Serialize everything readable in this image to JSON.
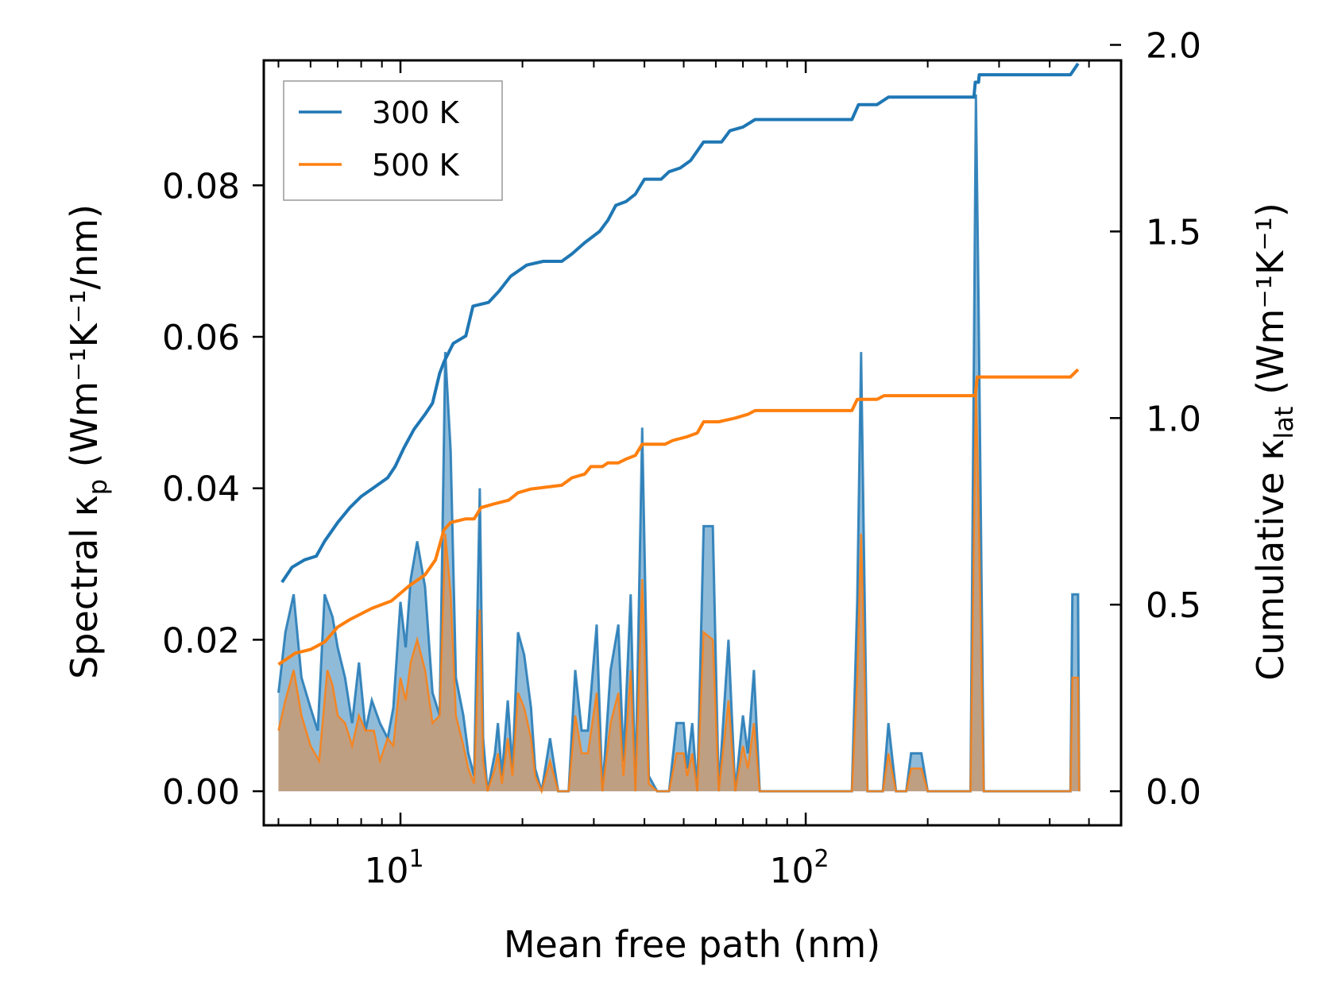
{
  "chart_data": {
    "type": "line",
    "xscale": "log",
    "xlabel": "Mean free path (nm)",
    "ylabel_left": {
      "main": "Spectral κ",
      "sub": "p",
      "units": " (Wm⁻¹K⁻¹/nm)"
    },
    "ylabel_right": {
      "main": "Cumulative κ",
      "sub": "lat",
      "units": " (Wm⁻¹K⁻¹)"
    },
    "xlim": [
      4.6,
      600
    ],
    "ylim_left": [
      -0.0045,
      0.0965
    ],
    "ylim_right": [
      -0.0913,
      1.9585
    ],
    "x_ticks": [
      {
        "value": 10,
        "base": "10",
        "exp": "1"
      },
      {
        "value": 100,
        "base": "10",
        "exp": "2"
      }
    ],
    "y_left_ticks": [
      {
        "value": 0.0,
        "label": "0.00"
      },
      {
        "value": 0.02,
        "label": "0.02"
      },
      {
        "value": 0.04,
        "label": "0.04"
      },
      {
        "value": 0.06,
        "label": "0.06"
      },
      {
        "value": 0.08,
        "label": "0.08"
      }
    ],
    "y_right_ticks": [
      {
        "value": 0.0,
        "label": "0.0"
      },
      {
        "value": 0.5,
        "label": "0.5"
      },
      {
        "value": 1.0,
        "label": "1.0"
      },
      {
        "value": 1.5,
        "label": "1.5"
      },
      {
        "value": 2.0,
        "label": "2.0"
      }
    ],
    "legend": {
      "location": "upper-left"
    },
    "colors": {
      "s300": "#1f77b4",
      "s500": "#ff7f0e"
    },
    "series": [
      {
        "name": "300 K",
        "cumulative": [
          [
            5.1,
            0.56
          ],
          [
            5.4,
            0.6
          ],
          [
            5.8,
            0.62
          ],
          [
            6.2,
            0.63
          ],
          [
            6.5,
            0.67
          ],
          [
            7.0,
            0.72
          ],
          [
            7.5,
            0.76
          ],
          [
            8.0,
            0.79
          ],
          [
            8.5,
            0.81
          ],
          [
            9.3,
            0.84
          ],
          [
            9.7,
            0.87
          ],
          [
            10.2,
            0.92
          ],
          [
            10.8,
            0.97
          ],
          [
            11.5,
            1.01
          ],
          [
            12.0,
            1.04
          ],
          [
            12.5,
            1.12
          ],
          [
            12.8,
            1.15
          ],
          [
            13.5,
            1.2
          ],
          [
            14.5,
            1.22
          ],
          [
            15.1,
            1.3
          ],
          [
            16.5,
            1.31
          ],
          [
            17.5,
            1.34
          ],
          [
            18.7,
            1.38
          ],
          [
            20.5,
            1.41
          ],
          [
            22.5,
            1.42
          ],
          [
            25.0,
            1.42
          ],
          [
            26.5,
            1.44
          ],
          [
            28.5,
            1.47
          ],
          [
            31.0,
            1.5
          ],
          [
            32.5,
            1.53
          ],
          [
            34.0,
            1.57
          ],
          [
            36.0,
            1.58
          ],
          [
            38.0,
            1.6
          ],
          [
            40.0,
            1.64
          ],
          [
            44.0,
            1.64
          ],
          [
            46.0,
            1.66
          ],
          [
            49.0,
            1.67
          ],
          [
            52.0,
            1.69
          ],
          [
            56.0,
            1.74
          ],
          [
            62.0,
            1.74
          ],
          [
            65.0,
            1.77
          ],
          [
            70.0,
            1.78
          ],
          [
            75.0,
            1.8
          ],
          [
            90.0,
            1.8
          ],
          [
            130.0,
            1.8
          ],
          [
            135.0,
            1.84
          ],
          [
            150.0,
            1.84
          ],
          [
            160.0,
            1.86
          ],
          [
            180.0,
            1.86
          ],
          [
            260.0,
            1.86
          ],
          [
            262.0,
            1.9
          ],
          [
            267.0,
            1.9
          ],
          [
            268.0,
            1.92
          ],
          [
            420.0,
            1.92
          ],
          [
            450.0,
            1.92
          ],
          [
            470.0,
            1.95
          ]
        ],
        "spectral": [
          [
            5.0,
            0.013
          ],
          [
            5.2,
            0.021
          ],
          [
            5.45,
            0.026
          ],
          [
            5.7,
            0.015
          ],
          [
            6.0,
            0.011
          ],
          [
            6.25,
            0.008
          ],
          [
            6.5,
            0.026
          ],
          [
            6.8,
            0.023
          ],
          [
            7.0,
            0.019
          ],
          [
            7.3,
            0.015
          ],
          [
            7.6,
            0.009
          ],
          [
            7.9,
            0.017
          ],
          [
            8.2,
            0.008
          ],
          [
            8.5,
            0.012
          ],
          [
            8.9,
            0.009
          ],
          [
            9.3,
            0.007
          ],
          [
            9.6,
            0.011
          ],
          [
            10.0,
            0.025
          ],
          [
            10.3,
            0.019
          ],
          [
            10.6,
            0.028
          ],
          [
            11.0,
            0.033
          ],
          [
            11.5,
            0.027
          ],
          [
            12.0,
            0.013
          ],
          [
            12.5,
            0.01
          ],
          [
            12.9,
            0.058
          ],
          [
            13.3,
            0.045
          ],
          [
            13.7,
            0.015
          ],
          [
            14.3,
            0.01
          ],
          [
            14.7,
            0.005
          ],
          [
            15.2,
            0.002
          ],
          [
            15.7,
            0.04
          ],
          [
            16.0,
            0.007
          ],
          [
            16.4,
            0.0
          ],
          [
            17.1,
            0.005
          ],
          [
            17.4,
            0.009
          ],
          [
            17.8,
            0.002
          ],
          [
            18.4,
            0.012
          ],
          [
            18.9,
            0.003
          ],
          [
            19.5,
            0.021
          ],
          [
            20.2,
            0.018
          ],
          [
            21.0,
            0.011
          ],
          [
            21.5,
            0.003
          ],
          [
            22.3,
            0.0
          ],
          [
            23.4,
            0.007
          ],
          [
            24.5,
            0.0
          ],
          [
            26.0,
            0.0
          ],
          [
            27.0,
            0.016
          ],
          [
            28.0,
            0.008
          ],
          [
            29.0,
            0.008
          ],
          [
            30.5,
            0.022
          ],
          [
            31.5,
            0.0
          ],
          [
            33.0,
            0.016
          ],
          [
            34.5,
            0.022
          ],
          [
            35.5,
            0.004
          ],
          [
            37.0,
            0.026
          ],
          [
            38.0,
            0.0
          ],
          [
            39.5,
            0.048
          ],
          [
            41.0,
            0.002
          ],
          [
            43.0,
            0.0
          ],
          [
            46.0,
            0.0
          ],
          [
            48.0,
            0.009
          ],
          [
            50.0,
            0.009
          ],
          [
            51.0,
            0.003
          ],
          [
            52.5,
            0.009
          ],
          [
            54.0,
            0.0
          ],
          [
            56.0,
            0.035
          ],
          [
            59.0,
            0.035
          ],
          [
            61.0,
            0.0
          ],
          [
            64.5,
            0.02
          ],
          [
            67.0,
            0.0
          ],
          [
            70.0,
            0.01
          ],
          [
            72.0,
            0.005
          ],
          [
            74.5,
            0.016
          ],
          [
            77.0,
            0.0
          ],
          [
            130.0,
            0.0
          ],
          [
            134.0,
            0.025
          ],
          [
            137.0,
            0.058
          ],
          [
            142.0,
            0.0
          ],
          [
            155.0,
            0.0
          ],
          [
            160.0,
            0.009
          ],
          [
            167.0,
            0.0
          ],
          [
            177.0,
            0.0
          ],
          [
            182.0,
            0.005
          ],
          [
            193.0,
            0.005
          ],
          [
            200.0,
            0.0
          ],
          [
            255.0,
            0.0
          ],
          [
            263.0,
            0.092
          ],
          [
            267.0,
            0.065
          ],
          [
            275.0,
            0.0
          ],
          [
            450.0,
            0.0
          ],
          [
            455.0,
            0.026
          ],
          [
            470.0,
            0.026
          ],
          [
            473.0,
            0.0
          ]
        ]
      },
      {
        "name": "500 K",
        "cumulative": [
          [
            5.0,
            0.34
          ],
          [
            5.5,
            0.37
          ],
          [
            6.0,
            0.38
          ],
          [
            6.5,
            0.4
          ],
          [
            7.0,
            0.44
          ],
          [
            7.5,
            0.46
          ],
          [
            8.5,
            0.49
          ],
          [
            9.5,
            0.51
          ],
          [
            10.5,
            0.55
          ],
          [
            11.5,
            0.58
          ],
          [
            12.2,
            0.62
          ],
          [
            12.8,
            0.7
          ],
          [
            13.3,
            0.72
          ],
          [
            14.5,
            0.73
          ],
          [
            15.2,
            0.73
          ],
          [
            15.8,
            0.76
          ],
          [
            17.0,
            0.77
          ],
          [
            18.5,
            0.78
          ],
          [
            19.5,
            0.8
          ],
          [
            21.0,
            0.81
          ],
          [
            25.0,
            0.82
          ],
          [
            26.5,
            0.84
          ],
          [
            28.5,
            0.85
          ],
          [
            29.5,
            0.87
          ],
          [
            31.5,
            0.87
          ],
          [
            32.5,
            0.88
          ],
          [
            34.5,
            0.88
          ],
          [
            36.0,
            0.89
          ],
          [
            38.0,
            0.9
          ],
          [
            39.5,
            0.93
          ],
          [
            45.0,
            0.93
          ],
          [
            47.0,
            0.94
          ],
          [
            51.0,
            0.95
          ],
          [
            54.0,
            0.96
          ],
          [
            56.0,
            0.99
          ],
          [
            61.0,
            0.99
          ],
          [
            67.0,
            1.0
          ],
          [
            72.0,
            1.01
          ],
          [
            75.0,
            1.02
          ],
          [
            130.0,
            1.02
          ],
          [
            134.0,
            1.05
          ],
          [
            150.0,
            1.05
          ],
          [
            156.0,
            1.06
          ],
          [
            180.0,
            1.06
          ],
          [
            262.0,
            1.06
          ],
          [
            265.0,
            1.11
          ],
          [
            270.0,
            1.11
          ],
          [
            430.0,
            1.11
          ],
          [
            450.0,
            1.11
          ],
          [
            470.0,
            1.13
          ]
        ],
        "spectral": [
          [
            5.0,
            0.008
          ],
          [
            5.2,
            0.012
          ],
          [
            5.45,
            0.016
          ],
          [
            5.7,
            0.01
          ],
          [
            6.0,
            0.006
          ],
          [
            6.3,
            0.004
          ],
          [
            6.6,
            0.016
          ],
          [
            6.8,
            0.014
          ],
          [
            7.0,
            0.01
          ],
          [
            7.3,
            0.009
          ],
          [
            7.6,
            0.006
          ],
          [
            7.9,
            0.01
          ],
          [
            8.2,
            0.008
          ],
          [
            8.6,
            0.008
          ],
          [
            8.9,
            0.004
          ],
          [
            9.3,
            0.007
          ],
          [
            9.6,
            0.006
          ],
          [
            10.0,
            0.015
          ],
          [
            10.3,
            0.012
          ],
          [
            10.6,
            0.017
          ],
          [
            11.0,
            0.02
          ],
          [
            11.5,
            0.016
          ],
          [
            12.0,
            0.009
          ],
          [
            12.5,
            0.01
          ],
          [
            12.9,
            0.034
          ],
          [
            13.3,
            0.026
          ],
          [
            13.7,
            0.01
          ],
          [
            14.3,
            0.006
          ],
          [
            14.7,
            0.003
          ],
          [
            15.2,
            0.001
          ],
          [
            15.7,
            0.024
          ],
          [
            16.0,
            0.004
          ],
          [
            16.4,
            0.0
          ],
          [
            17.1,
            0.003
          ],
          [
            17.4,
            0.005
          ],
          [
            17.8,
            0.001
          ],
          [
            18.4,
            0.007
          ],
          [
            18.9,
            0.002
          ],
          [
            19.5,
            0.013
          ],
          [
            20.2,
            0.011
          ],
          [
            21.0,
            0.007
          ],
          [
            21.5,
            0.002
          ],
          [
            22.3,
            0.0
          ],
          [
            23.4,
            0.004
          ],
          [
            24.5,
            0.0
          ],
          [
            26.0,
            0.0
          ],
          [
            27.0,
            0.01
          ],
          [
            28.0,
            0.005
          ],
          [
            29.0,
            0.005
          ],
          [
            30.5,
            0.013
          ],
          [
            31.5,
            0.0
          ],
          [
            33.0,
            0.009
          ],
          [
            34.5,
            0.013
          ],
          [
            35.5,
            0.002
          ],
          [
            37.0,
            0.016
          ],
          [
            38.0,
            0.0
          ],
          [
            39.5,
            0.028
          ],
          [
            41.0,
            0.001
          ],
          [
            43.0,
            0.0
          ],
          [
            46.0,
            0.0
          ],
          [
            48.0,
            0.005
          ],
          [
            50.0,
            0.005
          ],
          [
            51.0,
            0.002
          ],
          [
            52.5,
            0.005
          ],
          [
            54.0,
            0.0
          ],
          [
            56.0,
            0.021
          ],
          [
            59.0,
            0.02
          ],
          [
            61.0,
            0.0
          ],
          [
            64.5,
            0.012
          ],
          [
            67.0,
            0.0
          ],
          [
            70.0,
            0.006
          ],
          [
            72.0,
            0.003
          ],
          [
            74.5,
            0.009
          ],
          [
            77.0,
            0.0
          ],
          [
            130.0,
            0.0
          ],
          [
            134.0,
            0.015
          ],
          [
            137.0,
            0.034
          ],
          [
            142.0,
            0.0
          ],
          [
            155.0,
            0.0
          ],
          [
            160.0,
            0.005
          ],
          [
            167.0,
            0.0
          ],
          [
            177.0,
            0.0
          ],
          [
            182.0,
            0.003
          ],
          [
            193.0,
            0.003
          ],
          [
            200.0,
            0.0
          ],
          [
            255.0,
            0.0
          ],
          [
            263.0,
            0.054
          ],
          [
            267.0,
            0.038
          ],
          [
            275.0,
            0.0
          ],
          [
            450.0,
            0.0
          ],
          [
            455.0,
            0.015
          ],
          [
            470.0,
            0.015
          ],
          [
            473.0,
            0.0
          ]
        ]
      }
    ]
  }
}
